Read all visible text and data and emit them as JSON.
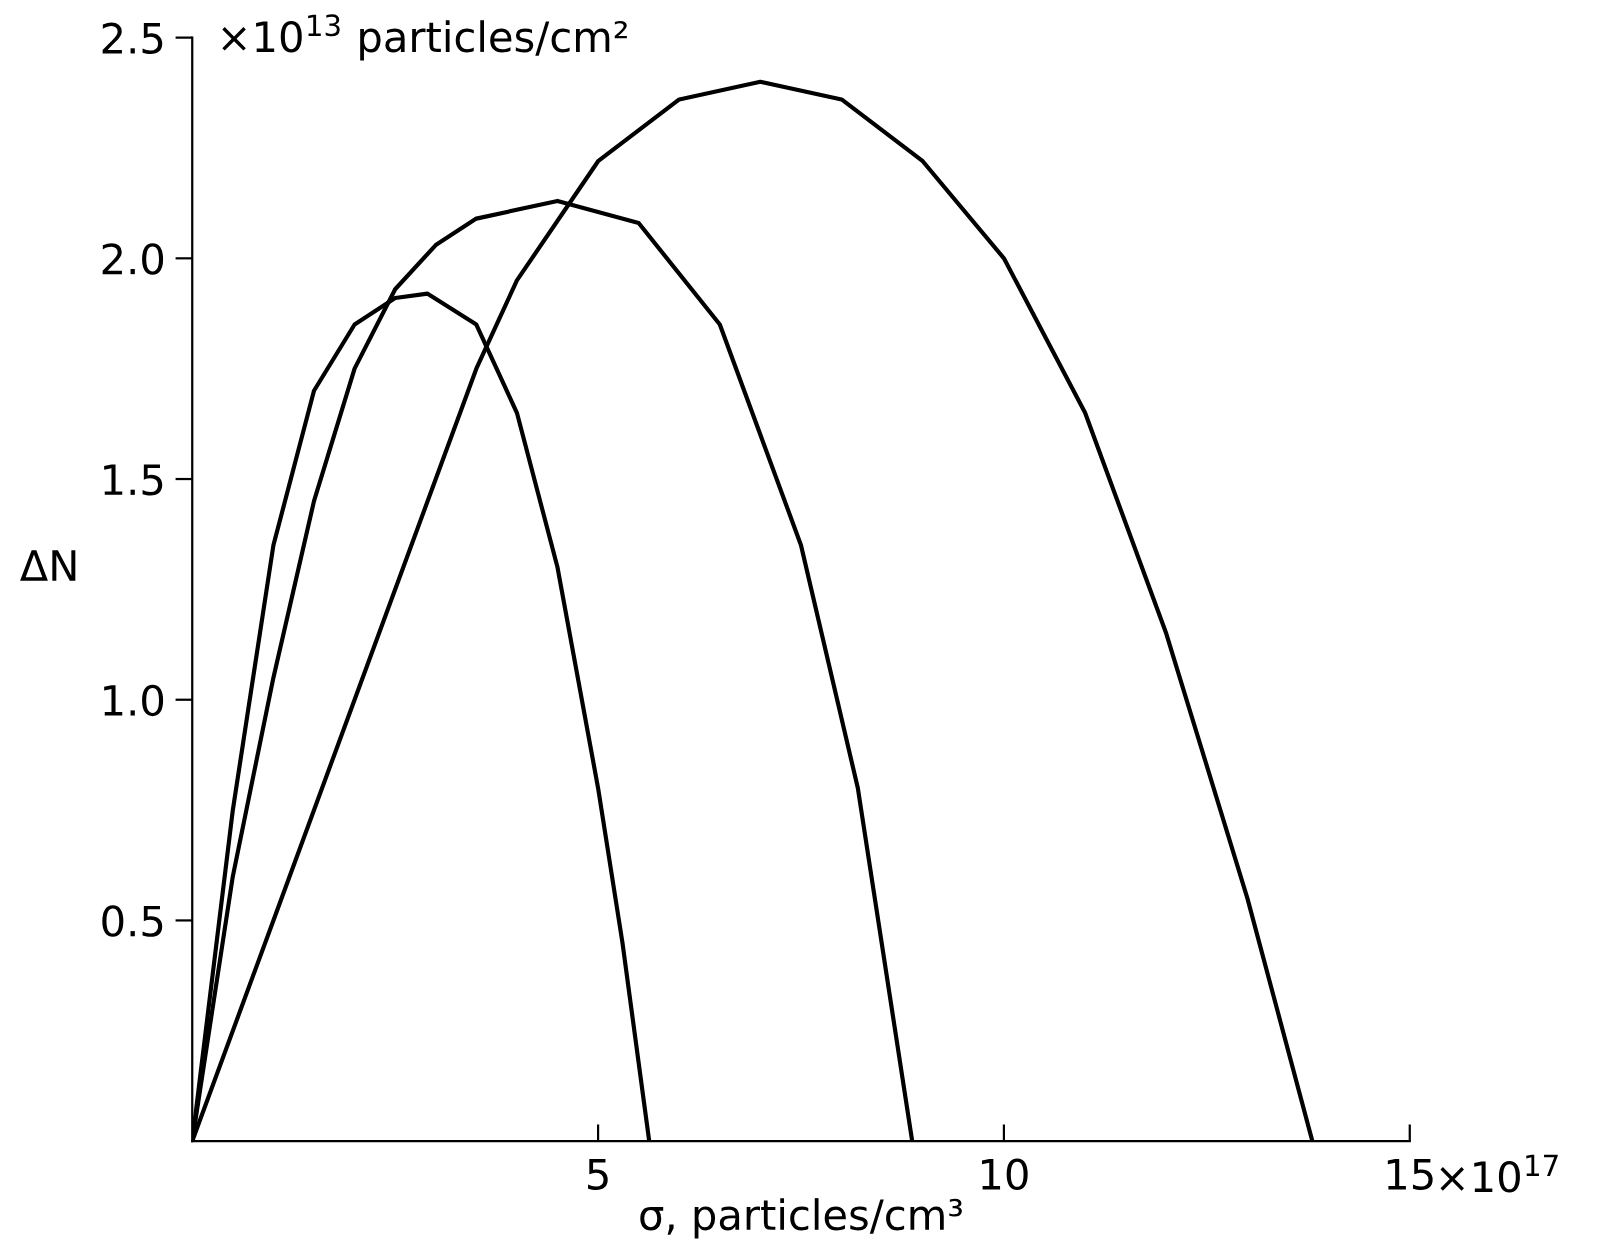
{
  "chart_data": {
    "type": "line",
    "xlabel": "σ, particles/cm³",
    "ylabel": "ΔN",
    "annotations": [
      "×10$^{13}$ particles/cm²",
      "×10$^{17}$"
    ],
    "xlim": [
      0,
      15
    ],
    "xticks": [
      5,
      10,
      15
    ],
    "ylim": [
      0,
      2.5
    ],
    "yticks": [
      {
        "value": 0.5,
        "label": "0.5"
      },
      {
        "value": 1.0,
        "label": "1.0"
      },
      {
        "value": 1.5,
        "label": "1.5"
      },
      {
        "value": 2.0,
        "label": "2.0"
      },
      {
        "value": 2.5,
        "label": "2.5"
      }
    ],
    "grid": false,
    "marker": "none",
    "line_style": "solid",
    "series": [
      {
        "color": "#000000",
        "x": [
          0,
          0.5,
          1.0,
          1.5,
          2.0,
          2.5,
          2.9,
          3.5,
          4.0,
          4.5,
          5.0,
          5.3,
          5.63
        ],
        "values": [
          0,
          0.75,
          1.35,
          1.7,
          1.85,
          1.91,
          1.92,
          1.85,
          1.65,
          1.3,
          0.8,
          0.45,
          0
        ]
      },
      {
        "color": "#000000",
        "x": [
          0,
          0.5,
          1,
          1.5,
          2,
          2.5,
          3,
          3.5,
          4.5,
          5.5,
          6.5,
          7.5,
          8.2,
          8.87
        ],
        "values": [
          0,
          0.6,
          1.05,
          1.45,
          1.75,
          1.93,
          2.03,
          2.09,
          2.13,
          2.08,
          1.85,
          1.35,
          0.8,
          0
        ]
      },
      {
        "color": "#000000",
        "x": [
          0,
          1,
          2,
          3,
          3.5,
          4,
          5,
          6,
          7,
          8,
          9,
          10,
          11,
          12,
          13,
          13.8
        ],
        "values": [
          0,
          0.5,
          1.0,
          1.5,
          1.75,
          1.95,
          2.22,
          2.36,
          2.4,
          2.36,
          2.22,
          2.0,
          1.65,
          1.15,
          0.55,
          0
        ]
      }
    ]
  }
}
